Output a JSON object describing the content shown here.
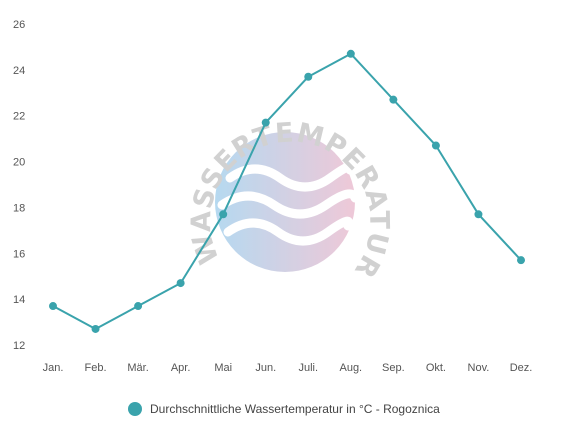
{
  "watermark": {
    "text": "WASSERTEMPERATUR.ORG"
  },
  "chart_data": {
    "type": "line",
    "categories": [
      "Jan.",
      "Feb.",
      "Mär.",
      "Apr.",
      "Mai",
      "Jun.",
      "Juli.",
      "Aug.",
      "Sep.",
      "Okt.",
      "Nov.",
      "Dez."
    ],
    "series": [
      {
        "name": "Durchschnittliche Wassertemperatur in °C - Rogoznica",
        "values": [
          13.7,
          12.7,
          13.7,
          14.7,
          17.7,
          21.7,
          23.7,
          24.7,
          22.7,
          20.7,
          17.7,
          15.7
        ],
        "color": "#3aa3ac"
      }
    ],
    "ylim": [
      12,
      26
    ],
    "yticks": [
      12,
      14,
      16,
      18,
      20,
      22,
      24,
      26
    ],
    "grid": false,
    "legend": "bottom-center"
  }
}
